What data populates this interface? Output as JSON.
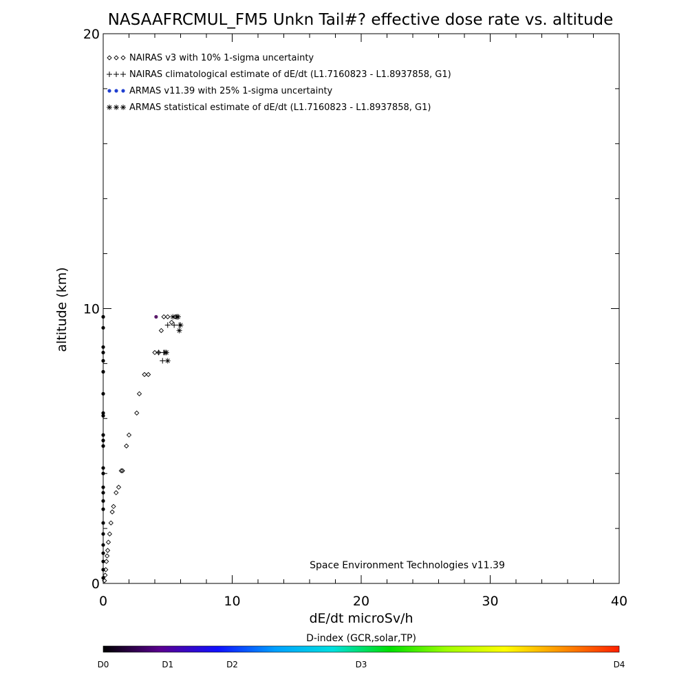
{
  "chart_data": {
    "type": "scatter",
    "title": "NASAAFRCMUL_FM5 Unkn Tail#? effective dose rate vs. altitude",
    "xlabel": "dE/dt microSv/h",
    "ylabel": "altitude (km)",
    "xlim": [
      0,
      40
    ],
    "ylim": [
      0,
      20
    ],
    "x_ticks": [
      "0",
      "10",
      "20",
      "30",
      "40"
    ],
    "y_ticks": [
      "0",
      "10",
      "20"
    ],
    "legend_position": "top-left",
    "legend": [
      {
        "label": "NAIRAS v3 with 10% 1-sigma uncertainty",
        "symbol": "diamond",
        "symbol_text": "◇◇◇",
        "color": "#000000"
      },
      {
        "label": "NAIRAS climatological estimate of dE/dt (L1.7160823 - L1.8937858, G1)",
        "symbol": "plus",
        "symbol_text": "+++",
        "color": "#000000"
      },
      {
        "label": "ARMAS v11.39 with 25% 1-sigma uncertainty",
        "symbol": "dot",
        "symbol_text": "●●●",
        "color": "#1f3fd0"
      },
      {
        "label": "ARMAS statistical estimate of dE/dt (L1.7160823 - L1.8937858, G1)",
        "symbol": "asterisk",
        "symbol_text": "***",
        "color": "#000000"
      }
    ],
    "credit": "Space Environment Technologies v11.39",
    "colorbar": {
      "title": "D-index (GCR,solar,TP)",
      "labels": [
        "D0",
        "D1",
        "D2",
        "D3",
        "D4"
      ],
      "label_positions": [
        0,
        0.125,
        0.25,
        0.5,
        1.0
      ],
      "colors": [
        "#000000",
        "#5a0090",
        "#1010ff",
        "#00a0ff",
        "#00e0e0",
        "#00e000",
        "#a0ff00",
        "#ffff00",
        "#ff9000",
        "#ff2000"
      ]
    },
    "series": [
      {
        "name": "NAIRAS v3 with 10% 1-sigma uncertainty",
        "marker": "diamond",
        "color": "#000000",
        "x": [
          0.1,
          0.15,
          0.2,
          0.25,
          0.3,
          0.35,
          0.4,
          0.5,
          0.6,
          0.7,
          0.8,
          1.0,
          1.2,
          1.4,
          1.5,
          1.8,
          2.0,
          2.6,
          2.8,
          3.2,
          3.5,
          4.0,
          4.3,
          4.5,
          4.7,
          5.0,
          5.3,
          5.6
        ],
        "y": [
          0.1,
          0.3,
          0.5,
          0.8,
          1.0,
          1.2,
          1.5,
          1.8,
          2.2,
          2.6,
          2.8,
          3.3,
          3.5,
          4.1,
          4.1,
          5.0,
          5.4,
          6.2,
          6.9,
          7.6,
          7.6,
          8.4,
          8.4,
          9.2,
          9.7,
          9.7,
          9.5,
          9.7
        ]
      },
      {
        "name": "NAIRAS climatological estimate of dE/dt (L1.7160823 - L1.8937858, G1)",
        "marker": "plus",
        "color": "#000000",
        "x": [
          4.3,
          4.6,
          4.7,
          5.0,
          5.5,
          5.9,
          5.8
        ],
        "y": [
          8.4,
          8.1,
          8.4,
          9.4,
          9.4,
          9.4,
          9.7
        ]
      },
      {
        "name": "ARMAS v11.39 with 25% 1-sigma uncertainty",
        "marker": "dot",
        "color": "#000000",
        "x": [
          0,
          0,
          0,
          0,
          0,
          0,
          0,
          0,
          0,
          0,
          0,
          0,
          0,
          0,
          0,
          0,
          0,
          0,
          0,
          0,
          0,
          0,
          0,
          0,
          0,
          4.1
        ],
        "y": [
          0.2,
          0.5,
          0.8,
          1.1,
          1.4,
          1.8,
          2.2,
          2.7,
          3.0,
          3.3,
          3.5,
          4.0,
          4.2,
          5.0,
          5.2,
          5.4,
          6.1,
          6.2,
          6.9,
          7.7,
          8.1,
          8.4,
          8.6,
          9.3,
          9.7,
          9.7
        ]
      },
      {
        "name": "ARMAS statistical estimate of dE/dt (L1.7160823 - L1.8937858, G1)",
        "marker": "asterisk",
        "color": "#000000",
        "x": [
          4.9,
          5.0,
          4.8,
          5.4,
          5.7,
          5.9,
          6.0,
          5.8
        ],
        "y": [
          8.4,
          8.1,
          8.4,
          9.7,
          9.7,
          9.2,
          9.4,
          9.7
        ]
      }
    ]
  }
}
